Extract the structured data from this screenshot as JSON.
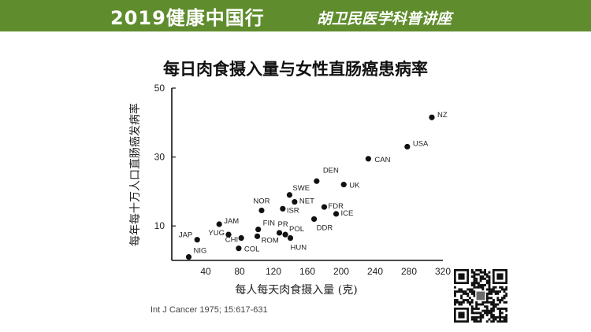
{
  "banner": {
    "title": "2019健康中国行",
    "subtitle": "胡卫民医学科普讲座",
    "background_color": "#5f8c2c"
  },
  "citation": "Int J Cancer 1975; 15:617-631",
  "qr_code": "qr-code-icon",
  "chart_data": {
    "type": "scatter",
    "title": "每日肉食摄入量与女性直肠癌患病率",
    "xlabel": "每人每天肉食摄入量 (克)",
    "ylabel": "每年每十万人口直肠癌发病率",
    "xlim": [
      0,
      320
    ],
    "ylim": [
      0,
      50
    ],
    "xticks": [
      40,
      80,
      120,
      160,
      200,
      240,
      280,
      320
    ],
    "xtick_labels": [
      "40",
      "80",
      "120",
      "160",
      "200",
      "240",
      "280",
      "320"
    ],
    "yticks": [
      10,
      30,
      50
    ],
    "ytick_labels": [
      "10",
      "30",
      "50"
    ],
    "grid": false,
    "point_color": "#111111",
    "points": [
      {
        "label": "NIG",
        "x": 20,
        "y": 1
      },
      {
        "label": "JAP",
        "x": 30,
        "y": 6
      },
      {
        "label": "JAM",
        "x": 56,
        "y": 10.5
      },
      {
        "label": "YUG",
        "x": 67,
        "y": 7.5
      },
      {
        "label": "CHI",
        "x": 82,
        "y": 6.5
      },
      {
        "label": "COL",
        "x": 79,
        "y": 3.5
      },
      {
        "label": "FIN",
        "x": 102,
        "y": 9
      },
      {
        "label": "ROM",
        "x": 101,
        "y": 7
      },
      {
        "label": "NOR",
        "x": 106,
        "y": 14.5
      },
      {
        "label": "ISR",
        "x": 131,
        "y": 15
      },
      {
        "label": "SWE",
        "x": 139,
        "y": 19
      },
      {
        "label": "NET",
        "x": 145,
        "y": 17
      },
      {
        "label": "PR",
        "x": 127,
        "y": 8
      },
      {
        "label": "POL",
        "x": 134,
        "y": 7.5
      },
      {
        "label": "HUN",
        "x": 140,
        "y": 6.5
      },
      {
        "label": "DEN",
        "x": 171,
        "y": 23
      },
      {
        "label": "FDR",
        "x": 180,
        "y": 15.5
      },
      {
        "label": "DDR",
        "x": 168,
        "y": 12
      },
      {
        "label": "ICE",
        "x": 194,
        "y": 13.5
      },
      {
        "label": "UK",
        "x": 203,
        "y": 22
      },
      {
        "label": "CAN",
        "x": 232,
        "y": 29.5
      },
      {
        "label": "USA",
        "x": 278,
        "y": 33
      },
      {
        "label": "NZ",
        "x": 307,
        "y": 41.5
      }
    ]
  }
}
